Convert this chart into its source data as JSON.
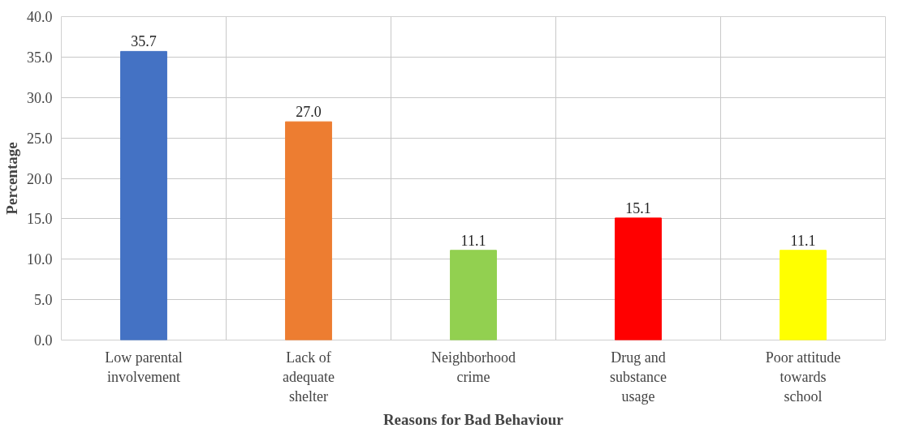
{
  "chart_data": {
    "type": "bar",
    "xlabel": "Reasons for Bad Behaviour",
    "ylabel": "Percentage",
    "categories": [
      "Low parental involvement",
      "Lack of adequate shelter",
      "Neighborhood crime",
      "Drug and substance usage",
      "Poor attitude towards school"
    ],
    "values": [
      35.7,
      27.0,
      11.1,
      15.1,
      11.1
    ],
    "colors": [
      "#4472c4",
      "#ed7d31",
      "#92d050",
      "#ff0000",
      "#ffff00"
    ],
    "value_labels": [
      "35.7",
      "27.0",
      "11.1",
      "15.1",
      "11.1"
    ],
    "ylim": [
      0,
      40
    ],
    "yticks": [
      {
        "value": 0,
        "label": "0.0"
      },
      {
        "value": 5,
        "label": "5.0"
      },
      {
        "value": 10,
        "label": "10.0"
      },
      {
        "value": 15,
        "label": "15.0"
      },
      {
        "value": 20,
        "label": "20.0"
      },
      {
        "value": 25,
        "label": "25.0"
      },
      {
        "value": 30,
        "label": "30.0"
      },
      {
        "value": 35,
        "label": "35.0"
      },
      {
        "value": 40,
        "label": "40.0"
      }
    ],
    "grid": true
  }
}
